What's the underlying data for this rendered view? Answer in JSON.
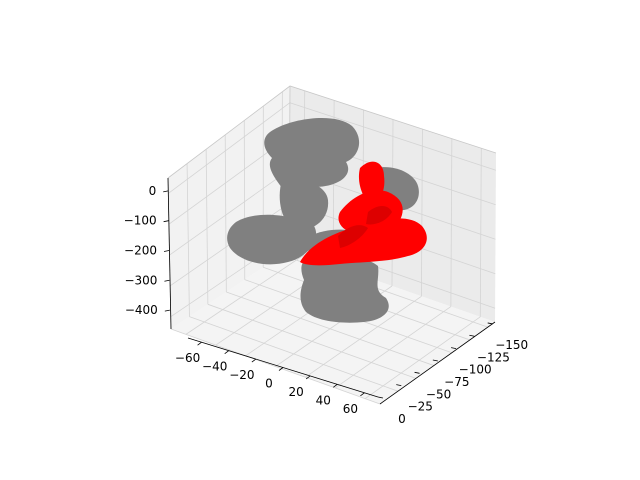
{
  "chart_data": {
    "type": "3d-surface",
    "title": "",
    "axes": {
      "x": {
        "ticks": [
          -60,
          -40,
          -20,
          0,
          20,
          40,
          60
        ],
        "tick_labels": [
          "−60",
          "−40",
          "−20",
          "0",
          "20",
          "40",
          "60"
        ],
        "label": ""
      },
      "y": {
        "ticks": [
          -150,
          -125,
          -100,
          -75,
          -50,
          -25,
          0
        ],
        "tick_labels": [
          "−150",
          "−125",
          "−100",
          "−75",
          "−50",
          "−25",
          "0"
        ],
        "label": ""
      },
      "z": {
        "ticks": [
          -400,
          -300,
          -200,
          -100,
          0
        ],
        "tick_labels": [
          "−400",
          "−300",
          "−200",
          "−100",
          "0"
        ],
        "label": ""
      }
    },
    "grid": true,
    "series": [
      {
        "color": "#808080"
      },
      {
        "color": "#ff0000"
      }
    ]
  }
}
